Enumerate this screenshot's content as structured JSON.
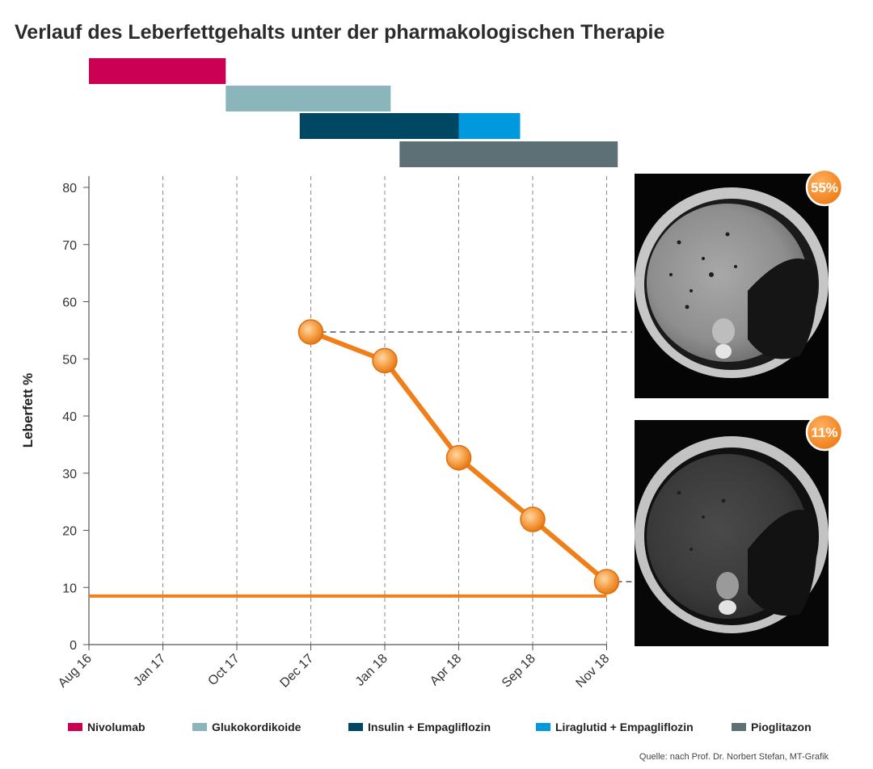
{
  "title": "Verlauf des Leberfettgehalts unter der pharmakologischen Therapie",
  "source": "Quelle: nach Prof. Dr. Norbert Stefan, MT-Grafik",
  "colors": {
    "line": "#f07f1a",
    "marker": "#f5a048",
    "grid": "#888888",
    "axis": "#555555",
    "badge": "#f07f1a"
  },
  "chart_data": {
    "type": "line",
    "xlabel": "",
    "ylabel": "Leberfett %",
    "ylim": [
      0,
      80
    ],
    "yticks": [
      0,
      10,
      20,
      30,
      40,
      50,
      60,
      70,
      80
    ],
    "categories": [
      "Aug 16",
      "Jan 17",
      "Oct 17",
      "Dec 17",
      "Jan 18",
      "Apr 18",
      "Sep 18",
      "Nov 18"
    ],
    "grid": "vertical dashed",
    "series": [
      {
        "values": [
          null,
          null,
          null,
          54.7,
          49.7,
          32.7,
          21.9,
          11.0
        ]
      }
    ],
    "reference_line": {
      "value": 8.5,
      "from": "Aug 16",
      "to": "Nov 18"
    },
    "therapy_bars": [
      {
        "name": "Nivolumab",
        "color": "#cc0052",
        "row": 0,
        "start": 0,
        "end": 1.85
      },
      {
        "name": "Glukokordikoide",
        "color": "#8ab5ba",
        "row": 1,
        "start": 1.85,
        "end": 4.08
      },
      {
        "name": "Insulin + Empagliflozin",
        "color": "#004763",
        "row": 2,
        "start": 2.85,
        "end": 5.0
      },
      {
        "name": "Liraglutid + Empagliflozin",
        "color": "#0099dd",
        "row": 2,
        "start": 5.0,
        "end": 5.83
      },
      {
        "name": "Pioglitazon",
        "color": "#5c7075",
        "row": 3,
        "start": 4.2,
        "end": 7.15
      }
    ],
    "annotations": [
      {
        "label": "55%",
        "value": 54.7,
        "category": "Dec 17"
      },
      {
        "label": "11%",
        "value": 11.0,
        "category": "Nov 18"
      }
    ]
  }
}
